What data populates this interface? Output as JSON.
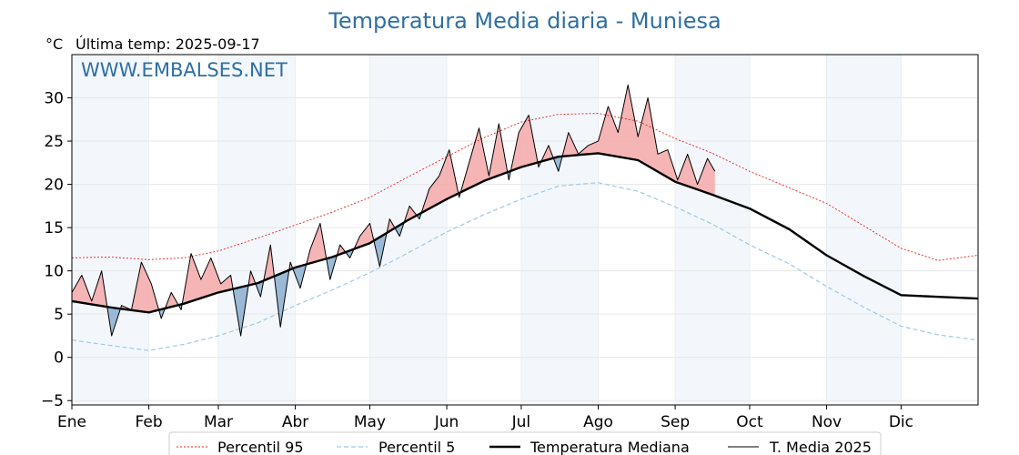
{
  "chart_data": {
    "type": "line",
    "title": "Temperatura Media diaria - Muniesa",
    "unit": "°C",
    "subtitle": "Última temp: 2025-09-17",
    "watermark": "WWW.EMBALSES.NET",
    "xlabel": "",
    "ylabel": "",
    "ylim": [
      -5.5,
      35
    ],
    "yticks": [
      -5,
      0,
      5,
      10,
      15,
      20,
      25,
      30
    ],
    "ytick_labels": [
      "−5",
      "0",
      "5",
      "10",
      "15",
      "20",
      "25",
      "30"
    ],
    "months": [
      {
        "label": "Ene",
        "day": 0
      },
      {
        "label": "Feb",
        "day": 31
      },
      {
        "label": "Mar",
        "day": 59
      },
      {
        "label": "Abr",
        "day": 90
      },
      {
        "label": "May",
        "day": 120
      },
      {
        "label": "Jun",
        "day": 151
      },
      {
        "label": "Jul",
        "day": 181
      },
      {
        "label": "Ago",
        "day": 212
      },
      {
        "label": "Sep",
        "day": 243
      },
      {
        "label": "Oct",
        "day": 273
      },
      {
        "label": "Nov",
        "day": 304
      },
      {
        "label": "Dic",
        "day": 334
      }
    ],
    "shaded_months": [
      "Ene",
      "Mar",
      "May",
      "Jul",
      "Sep",
      "Nov"
    ],
    "grid": true,
    "legend_position": "bottom",
    "legend": [
      "Percentil 95",
      "Percentil 5",
      "Temperatura Mediana",
      "T. Media 2025"
    ],
    "series": [
      {
        "name": "Percentil 95",
        "style": "dotted",
        "color": "#e8201c",
        "x": [
          0,
          15,
          31,
          45,
          59,
          75,
          90,
          105,
          120,
          135,
          151,
          166,
          181,
          196,
          212,
          228,
          243,
          258,
          273,
          289,
          304,
          319,
          334,
          349,
          365
        ],
        "values": [
          11.5,
          11.6,
          11.3,
          11.5,
          12.3,
          13.8,
          15.3,
          16.8,
          18.5,
          20.8,
          23.2,
          25.4,
          27.2,
          28.1,
          28.2,
          27.3,
          25.3,
          23.6,
          21.5,
          19.6,
          17.8,
          15.2,
          12.6,
          11.2,
          11.8
        ]
      },
      {
        "name": "Percentil 5",
        "style": "dashed",
        "color": "#9ecae1",
        "x": [
          0,
          15,
          31,
          45,
          59,
          75,
          90,
          105,
          120,
          135,
          151,
          166,
          181,
          196,
          212,
          228,
          243,
          258,
          273,
          289,
          304,
          319,
          334,
          349,
          365
        ],
        "values": [
          2.0,
          1.4,
          0.8,
          1.5,
          2.5,
          4.0,
          6.0,
          7.8,
          9.8,
          12.0,
          14.5,
          16.5,
          18.3,
          19.8,
          20.2,
          19.2,
          17.4,
          15.4,
          13.0,
          10.8,
          8.2,
          5.8,
          3.6,
          2.6,
          2.0
        ]
      },
      {
        "name": "Temperatura Mediana",
        "style": "solid-bold",
        "color": "#000000",
        "x": [
          0,
          15,
          31,
          45,
          59,
          75,
          90,
          105,
          120,
          135,
          151,
          166,
          181,
          196,
          212,
          228,
          243,
          258,
          273,
          289,
          304,
          319,
          334,
          349,
          365
        ],
        "values": [
          6.5,
          5.8,
          5.2,
          6.2,
          7.5,
          8.6,
          10.4,
          11.6,
          13.2,
          15.8,
          18.3,
          20.4,
          22.0,
          23.2,
          23.6,
          22.8,
          20.3,
          18.8,
          17.2,
          14.8,
          11.8,
          9.4,
          7.2,
          7.0,
          6.8
        ]
      },
      {
        "name": "T. Media 2025",
        "style": "solid-thin",
        "color": "#000000",
        "x": [
          0,
          4,
          8,
          12,
          16,
          20,
          24,
          28,
          32,
          36,
          40,
          44,
          48,
          52,
          56,
          60,
          64,
          68,
          72,
          76,
          80,
          84,
          88,
          92,
          96,
          100,
          104,
          108,
          112,
          116,
          120,
          124,
          128,
          132,
          136,
          140,
          144,
          148,
          152,
          156,
          160,
          164,
          168,
          172,
          176,
          180,
          184,
          188,
          192,
          196,
          200,
          204,
          208,
          212,
          216,
          220,
          224,
          228,
          232,
          236,
          240,
          244,
          248,
          252,
          256,
          259
        ],
        "values": [
          7.5,
          9.5,
          6.5,
          10.0,
          2.5,
          6.0,
          5.5,
          11.0,
          8.5,
          4.5,
          7.5,
          5.5,
          12.0,
          9.0,
          11.5,
          8.5,
          9.5,
          2.5,
          10.0,
          7.0,
          13.0,
          3.5,
          11.0,
          8.0,
          12.5,
          15.5,
          9.0,
          13.0,
          11.5,
          14.0,
          15.5,
          10.5,
          16.0,
          14.0,
          17.5,
          16.0,
          19.5,
          21.0,
          24.0,
          18.5,
          22.5,
          26.5,
          21.0,
          27.0,
          20.5,
          26.0,
          28.0,
          22.0,
          24.5,
          21.5,
          26.0,
          23.5,
          24.5,
          25.0,
          29.0,
          26.0,
          31.5,
          25.5,
          30.0,
          23.5,
          24.0,
          20.5,
          23.5,
          20.0,
          23.0,
          21.5
        ]
      }
    ]
  }
}
